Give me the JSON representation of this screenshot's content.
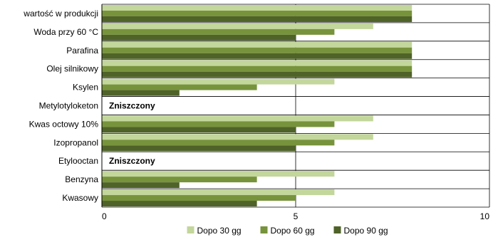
{
  "chart_data": {
    "type": "bar",
    "orientation": "horizontal",
    "categories": [
      "wartość w produkcji",
      "Woda przy 60 °C",
      "Parafina",
      "Olej silnikowy",
      "Ksylen",
      "Metylotyloketon",
      "Kwas octowy 10%",
      "Izopropanol",
      "Etylooctan",
      "Benzyna",
      "Kwasowy"
    ],
    "series": [
      {
        "name": "Dopo 30 gg",
        "color": "#c3d69b",
        "values": [
          8,
          7,
          8,
          8,
          6,
          null,
          7,
          7,
          null,
          6,
          6
        ]
      },
      {
        "name": "Dopo 60 gg",
        "color": "#77933c",
        "values": [
          8,
          6,
          8,
          8,
          4,
          null,
          6,
          6,
          null,
          4,
          5
        ]
      },
      {
        "name": "Dopo 90 gg",
        "color": "#4f6228",
        "values": [
          8,
          5,
          8,
          8,
          2,
          null,
          5,
          5,
          null,
          2,
          4
        ]
      }
    ],
    "annotations": [
      {
        "category": "Metylotyloketon",
        "text": "Zniszczony"
      },
      {
        "category": "Etylooctan",
        "text": "Zniszczony"
      }
    ],
    "xlim": [
      0,
      10
    ],
    "xticks": [
      "0",
      "5",
      "10"
    ],
    "grid": true,
    "legend_position": "bottom",
    "colors": {
      "grid": "#000000",
      "background": "#ffffff"
    }
  }
}
